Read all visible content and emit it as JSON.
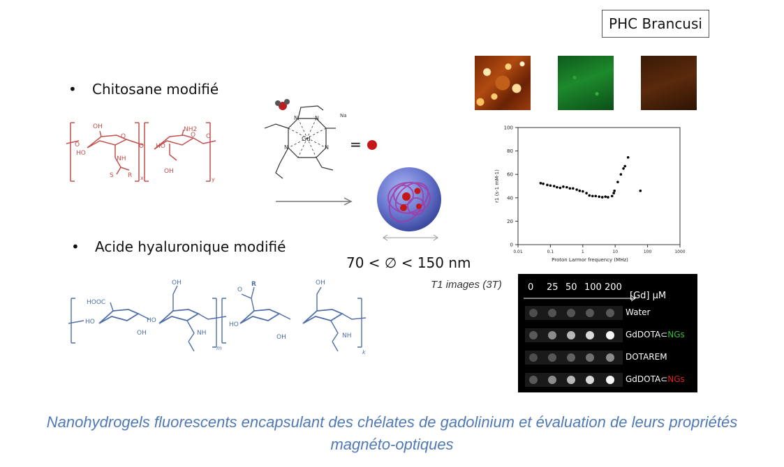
{
  "header": {
    "brand": "PHC Brancusi"
  },
  "bullets": [
    {
      "label": "Chitosane modifié"
    },
    {
      "label": "Acide hyaluronique modifié"
    }
  ],
  "chitosan": {
    "oh_top": "OH",
    "nh2": "NH2",
    "o_left": "O",
    "ho": "HO",
    "nh": "NH",
    "o_ring": "O",
    "o_link": "O",
    "o_ring2": "O",
    "o_right": "O",
    "ho2": "HO",
    "oh_bottom": "OH",
    "s": "S",
    "r": "R",
    "x": "x",
    "y": "y"
  },
  "gd_complex": {
    "gd": "Gd",
    "na": "Na",
    "n": "N",
    "equals": "="
  },
  "hyaluronic": {
    "oh1": "OH",
    "oh2": "OH",
    "r": "R",
    "hooc": "HOOC",
    "ho1": "HO",
    "ho2": "HO",
    "ho3": "HO",
    "oh3": "OH",
    "oh4": "OH",
    "nh1": "NH",
    "nh2": "NH",
    "m": "m",
    "k": "k",
    "o": "O"
  },
  "size_label": "70 < ∅ < 150 nm",
  "t1_label": "T1 images (3T)",
  "chart_data": {
    "type": "scatter",
    "xlabel": "Proton Larmor frequency (MHz)",
    "ylabel": "r1 (s-1 mM-1)",
    "xscale": "log",
    "xlim": [
      0.01,
      1000
    ],
    "ylim": [
      0,
      100
    ],
    "x_ticks": [
      "0.01",
      "0.1",
      "1",
      "10",
      "100",
      "1000"
    ],
    "y_ticks": [
      "0",
      "20",
      "40",
      "60",
      "80",
      "100"
    ],
    "points": [
      [
        0.05,
        52.5
      ],
      [
        0.06,
        52
      ],
      [
        0.08,
        51
      ],
      [
        0.1,
        50.5
      ],
      [
        0.13,
        50
      ],
      [
        0.16,
        49
      ],
      [
        0.2,
        48.5
      ],
      [
        0.25,
        49.5
      ],
      [
        0.32,
        49
      ],
      [
        0.4,
        48
      ],
      [
        0.5,
        48
      ],
      [
        0.65,
        47
      ],
      [
        0.8,
        46
      ],
      [
        1,
        45.5
      ],
      [
        1.3,
        44
      ],
      [
        1.6,
        42
      ],
      [
        2,
        41.5
      ],
      [
        2.5,
        41.5
      ],
      [
        3.2,
        41
      ],
      [
        4,
        40.5
      ],
      [
        5,
        41
      ],
      [
        6,
        40.5
      ],
      [
        8,
        41.5
      ],
      [
        9,
        44
      ],
      [
        9.5,
        46
      ],
      [
        12,
        53.5
      ],
      [
        15,
        60
      ],
      [
        18,
        65
      ],
      [
        20,
        67
      ],
      [
        25,
        74.5
      ],
      [
        60,
        46
      ]
    ]
  },
  "mri": {
    "concentrations": [
      "0",
      "25",
      "50",
      "100",
      "200"
    ],
    "unit": "[Gd] µM",
    "rows": [
      {
        "label_a": "Water",
        "label_b": "",
        "label_b_color": "#ffffff",
        "intensities": [
          0.3,
          0.32,
          0.33,
          0.34,
          0.35
        ]
      },
      {
        "label_a": "GdDOTA⊂",
        "label_b": "NGs",
        "label_b_color": "#2fbf3a",
        "intensities": [
          0.35,
          0.55,
          0.72,
          0.85,
          0.97
        ]
      },
      {
        "label_a": "DOTAREM",
        "label_b": "",
        "label_b_color": "#ffffff",
        "intensities": [
          0.3,
          0.34,
          0.38,
          0.44,
          0.55
        ]
      },
      {
        "label_a": "GdDOTA⊂",
        "label_b": "NGs",
        "label_b_color": "#e02020",
        "intensities": [
          0.35,
          0.55,
          0.72,
          0.85,
          0.97
        ]
      }
    ]
  },
  "caption": {
    "line1": "Nanohydrogels fluorescents encapsulant des chélates de gadolinium et évaluation de leurs propriétés",
    "line2": "magnéto-optiques"
  }
}
